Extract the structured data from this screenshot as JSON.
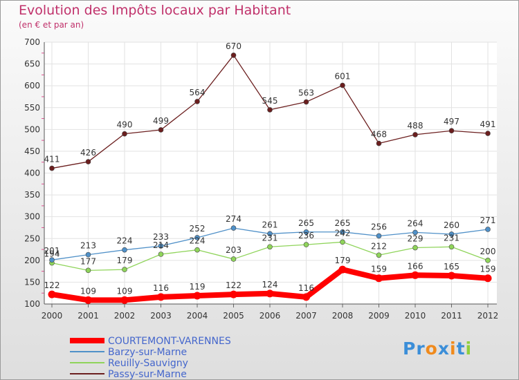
{
  "chart_data": {
    "type": "line",
    "title": "Evolution des Impôts locaux par Habitant",
    "subtitle": "(en € et par an)",
    "xlabel": "",
    "ylabel": "",
    "categories": [
      "2000",
      "2001",
      "2002",
      "2003",
      "2004",
      "2005",
      "2006",
      "2007",
      "2008",
      "2009",
      "2010",
      "2011",
      "2012"
    ],
    "ylim": [
      100,
      700
    ],
    "yticks": [
      100,
      150,
      200,
      250,
      300,
      350,
      400,
      450,
      500,
      550,
      600,
      650,
      700
    ],
    "grid": true,
    "legend_position": "bottom-left",
    "series": [
      {
        "name": "COURTEMONT-VARENNES",
        "color": "#ff0000",
        "values": [
          122,
          109,
          109,
          116,
          119,
          122,
          124,
          116,
          179,
          159,
          166,
          165,
          159
        ]
      },
      {
        "name": "Barzy-sur-Marne",
        "color": "#4f90c8",
        "values": [
          201,
          213,
          224,
          233,
          252,
          274,
          261,
          265,
          265,
          256,
          264,
          260,
          271
        ]
      },
      {
        "name": "Reuilly-Sauvigny",
        "color": "#8fd45a",
        "values": [
          194,
          177,
          179,
          214,
          224,
          203,
          231,
          236,
          242,
          212,
          229,
          231,
          200
        ]
      },
      {
        "name": "Passy-sur-Marne",
        "color": "#6b1e1e",
        "values": [
          411,
          426,
          490,
          499,
          564,
          670,
          545,
          563,
          601,
          468,
          488,
          497,
          491
        ]
      }
    ]
  },
  "logo": {
    "text": "Proxiti",
    "letters": [
      "P",
      "r",
      "o",
      "x",
      "i",
      "t",
      "i"
    ],
    "colors": [
      "#3b8ed8",
      "#3b8ed8",
      "#f08a1c",
      "#3b8ed8",
      "#f08a1c",
      "#3b8ed8",
      "#8fcf3c"
    ]
  }
}
